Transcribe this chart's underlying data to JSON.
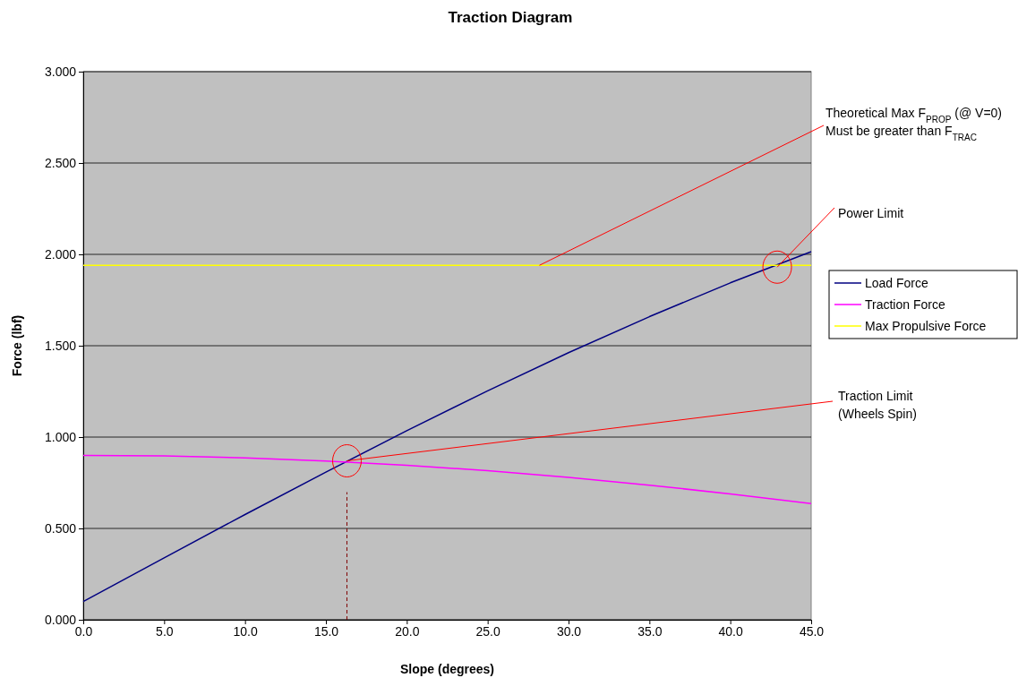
{
  "chart_data": {
    "type": "line",
    "title": "Traction Diagram",
    "xlabel": "Slope (degrees)",
    "ylabel": "Force (lbf)",
    "xlim": [
      0,
      45
    ],
    "ylim": [
      0,
      3
    ],
    "xticks": [
      {
        "value": 0,
        "label": "0.0"
      },
      {
        "value": 5,
        "label": "5.0"
      },
      {
        "value": 10,
        "label": "10.0"
      },
      {
        "value": 15,
        "label": "15.0"
      },
      {
        "value": 20,
        "label": "20.0"
      },
      {
        "value": 25,
        "label": "25.0"
      },
      {
        "value": 30,
        "label": "30.0"
      },
      {
        "value": 35,
        "label": "35.0"
      },
      {
        "value": 40,
        "label": "40.0"
      },
      {
        "value": 45,
        "label": "45.0"
      }
    ],
    "yticks": [
      {
        "value": 0,
        "label": "0.000"
      },
      {
        "value": 0.5,
        "label": "0.500"
      },
      {
        "value": 1,
        "label": "1.000"
      },
      {
        "value": 1.5,
        "label": "1.500"
      },
      {
        "value": 2,
        "label": "2.000"
      },
      {
        "value": 2.5,
        "label": "2.500"
      },
      {
        "value": 3,
        "label": "3.000"
      }
    ],
    "x": [
      0,
      5,
      10,
      15,
      20,
      25,
      30,
      35,
      40,
      45
    ],
    "series": [
      {
        "name": "Load Force",
        "color": "#000080",
        "values": [
          0.1,
          0.339,
          0.576,
          0.808,
          1.035,
          1.253,
          1.462,
          1.659,
          1.844,
          2.015
        ]
      },
      {
        "name": "Traction Force",
        "color": "#ff00ff",
        "values": [
          0.9,
          0.897,
          0.886,
          0.869,
          0.846,
          0.816,
          0.779,
          0.737,
          0.689,
          0.636
        ]
      },
      {
        "name": "Max Propulsive Force",
        "color": "#ffff00",
        "values": [
          1.94,
          1.94,
          1.94,
          1.94,
          1.94,
          1.94,
          1.94,
          1.94,
          1.94,
          1.94
        ]
      }
    ],
    "ref_lines": [
      {
        "axis": "x",
        "value": 16.3,
        "color": "#800000",
        "line_style": "dashed"
      }
    ],
    "annotations": [
      {
        "text": "Theoretical Max F$_{PROP}$ (@ V=0)\nMust be greater than F$_{TRAC}$",
        "x": 28.2,
        "y": 1.94
      },
      {
        "text": "Power Limit",
        "x": 42.9,
        "y": 1.93
      },
      {
        "text": "Traction Limit\n(Wheels Spin)",
        "x": 16.3,
        "y": 0.87
      }
    ],
    "grid": "y",
    "legend": "right",
    "marker": "none",
    "line_style": "solid"
  }
}
